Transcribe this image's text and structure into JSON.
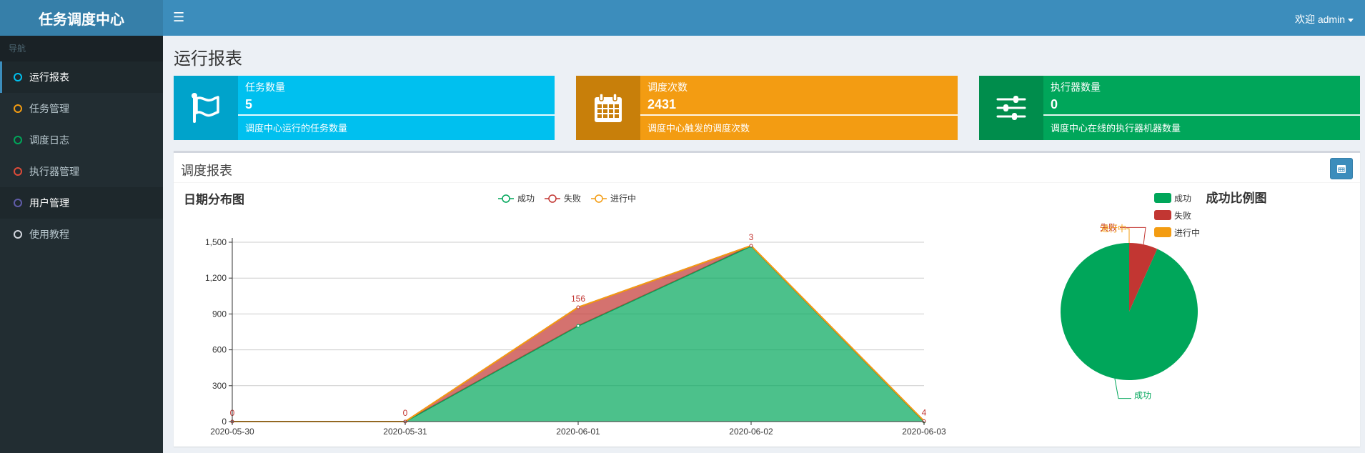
{
  "app": {
    "title": "任务调度中心"
  },
  "header": {
    "welcome": "欢迎 admin"
  },
  "sidebar": {
    "header": "导航",
    "items": [
      {
        "label": "运行报表",
        "color": "#00c0ef"
      },
      {
        "label": "任务管理",
        "color": "#f39c12"
      },
      {
        "label": "调度日志",
        "color": "#00a65a"
      },
      {
        "label": "执行器管理",
        "color": "#dd4b39"
      },
      {
        "label": "用户管理",
        "color": "#605ca8"
      },
      {
        "label": "使用教程",
        "color": "#d2d6de"
      }
    ]
  },
  "page": {
    "title": "运行报表"
  },
  "stats": [
    {
      "label": "任务数量",
      "value": "5",
      "desc": "调度中心运行的任务数量",
      "color": "#00c0ef",
      "icon_bg": "#00a3cb",
      "icon": "flag-icon"
    },
    {
      "label": "调度次数",
      "value": "2431",
      "desc": "调度中心触发的调度次数",
      "color": "#f39c12",
      "icon_bg": "#c87f0a",
      "icon": "calendar-icon"
    },
    {
      "label": "执行器数量",
      "value": "0",
      "desc": "调度中心在线的执行器机器数量",
      "color": "#00a65a",
      "icon_bg": "#008d4c",
      "icon": "sliders-icon"
    }
  ],
  "report": {
    "title": "调度报表"
  },
  "chart_data": [
    {
      "type": "area",
      "title": "日期分布图",
      "categories": [
        "2020-05-30",
        "2020-05-31",
        "2020-06-01",
        "2020-06-02",
        "2020-06-03"
      ],
      "stacked": true,
      "series": [
        {
          "name": "成功",
          "values": [
            0,
            0,
            800,
            1468,
            0
          ],
          "color": "#00A65A"
        },
        {
          "name": "失败",
          "values": [
            0,
            0,
            156,
            3,
            4
          ],
          "color": "#c23632"
        },
        {
          "name": "进行中",
          "values": [
            0,
            0,
            0,
            0,
            0
          ],
          "color": "#F39C12"
        }
      ],
      "data_labels": [
        "0",
        "0",
        "156",
        "3",
        "4"
      ],
      "yticks": [
        "0",
        "300",
        "600",
        "900",
        "1,200",
        "1,500"
      ],
      "ylim": [
        0,
        1500
      ],
      "legend": "top-center"
    },
    {
      "type": "pie",
      "title": "成功比例图",
      "legend_items": [
        "成功",
        "失败",
        "进行中"
      ],
      "slices": [
        {
          "name": "成功",
          "value": 2268,
          "color": "#00A65A"
        },
        {
          "name": "失败",
          "value": 163,
          "color": "#c23632"
        },
        {
          "name": "进行中",
          "value": 0,
          "color": "#F39C12"
        }
      ],
      "legend": "left"
    }
  ]
}
